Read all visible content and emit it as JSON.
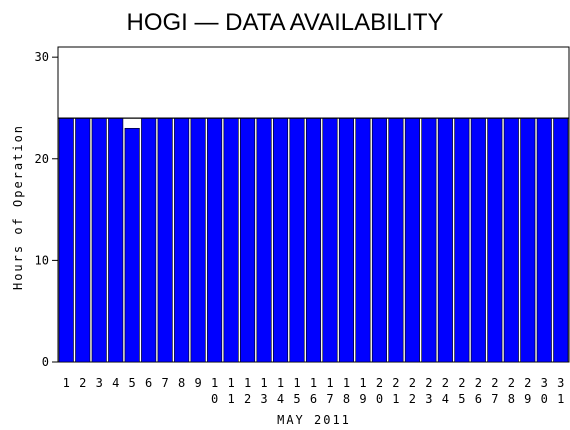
{
  "chart_data": {
    "type": "bar",
    "title": "HOGI — DATA AVAILABILITY",
    "x_label": "MAY 2011",
    "y_label": "Hours of Operation",
    "categories": [
      "1",
      "2",
      "3",
      "4",
      "5",
      "6",
      "7",
      "8",
      "9",
      "10",
      "11",
      "12",
      "13",
      "14",
      "15",
      "16",
      "17",
      "18",
      "19",
      "20",
      "21",
      "22",
      "23",
      "24",
      "25",
      "26",
      "27",
      "28",
      "29",
      "30",
      "31"
    ],
    "values": [
      24,
      24,
      24,
      24,
      23,
      24,
      24,
      24,
      24,
      24,
      24,
      24,
      24,
      24,
      24,
      24,
      24,
      24,
      24,
      24,
      24,
      24,
      24,
      24,
      24,
      24,
      24,
      24,
      24,
      24,
      24
    ],
    "color": "#0000ff",
    "reference_line": 24,
    "ylim": [
      0,
      31
    ],
    "yticks": [
      0,
      10,
      20,
      30
    ]
  }
}
